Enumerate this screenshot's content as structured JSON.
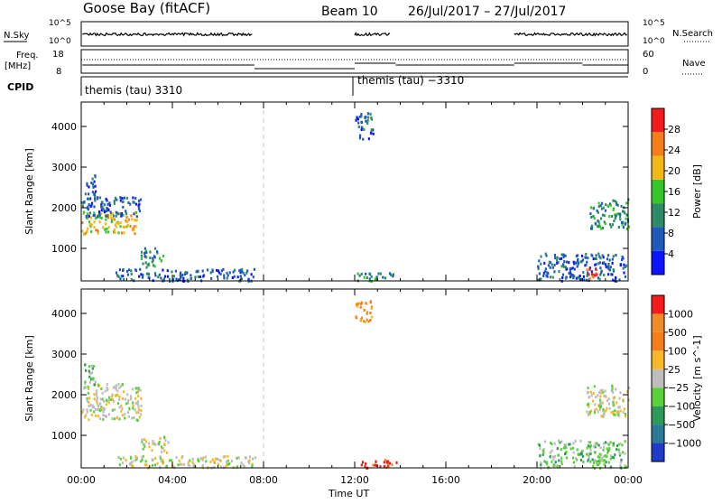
{
  "header": {
    "station": "Goose Bay (fitACF)",
    "beam": "Beam 10",
    "date_range": "26/Jul/2017 – 27/Jul/2017"
  },
  "info_panels": {
    "nsky_label": "N.Sky",
    "nsearch_label": "N.Search",
    "freq_label": "Freq.",
    "freq_unit": "[MHz]",
    "nave_label": "Nave",
    "cpid_label": "CPID",
    "nsky_ticks": [
      "10^5",
      "10^0"
    ],
    "nsearch_ticks": [
      "10^5",
      "10^0"
    ],
    "freq_ticks": [
      "18",
      "8"
    ],
    "nave_ticks": [
      "60",
      "0"
    ],
    "cpid_text_1": "themis (tau) 3310",
    "cpid_text_2": "themis (tau) −3310"
  },
  "colors": {
    "scatter_gray": "#bdbdbd",
    "divider_dashed": "#c8c8c8"
  },
  "chart_data": [
    {
      "type": "heatmap",
      "panel": "power",
      "ylabel": "Slant Range [km]",
      "yticks": [
        1000,
        2000,
        3000,
        4000
      ],
      "ylim": [
        200,
        4600
      ],
      "xlim": [
        0,
        24
      ],
      "colorbar": {
        "label": "Power [dB]",
        "levels": [
          "4",
          "8",
          "12",
          "16",
          "20",
          "24",
          "28"
        ],
        "colors": [
          "#0a14ff",
          "#1e5abc",
          "#2d8a64",
          "#34c62a",
          "#f2b818",
          "#f57d1a",
          "#f31c1c"
        ],
        "min": 0,
        "max": 32
      },
      "clusters": [
        {
          "t0": 0.0,
          "t1": 2.5,
          "r0": 1380,
          "r1": 1950,
          "level": 4
        },
        {
          "t0": 0.0,
          "t1": 2.6,
          "r0": 1800,
          "r1": 2300,
          "level": 1
        },
        {
          "t0": 0.1,
          "t1": 0.6,
          "r0": 2200,
          "r1": 2850,
          "level": 1
        },
        {
          "t0": 2.6,
          "t1": 3.6,
          "r0": 560,
          "r1": 1050,
          "level": 2
        },
        {
          "t0": 1.5,
          "t1": 7.6,
          "r0": 220,
          "r1": 520,
          "level": 1
        },
        {
          "t0": 12.0,
          "t1": 12.8,
          "r0": 3700,
          "r1": 4350,
          "level": 1
        },
        {
          "t0": 12.0,
          "t1": 13.8,
          "r0": 220,
          "r1": 420,
          "level": 2
        },
        {
          "t0": 20.0,
          "t1": 23.9,
          "r0": 220,
          "r1": 900,
          "level": 1
        },
        {
          "t0": 22.0,
          "t1": 22.7,
          "r0": 280,
          "r1": 520,
          "level": 6
        },
        {
          "t0": 22.3,
          "t1": 24.0,
          "r0": 1500,
          "r1": 2250,
          "level": 2
        }
      ]
    },
    {
      "type": "heatmap",
      "panel": "velocity",
      "ylabel": "Slant Range [km]",
      "xlabel": "Time UT",
      "yticks": [
        1000,
        2000,
        3000,
        4000
      ],
      "ylim": [
        200,
        4600
      ],
      "xlim": [
        0,
        24
      ],
      "xticks": [
        "00:00",
        "04:00",
        "08:00",
        "12:00",
        "16:00",
        "20:00",
        "00:00"
      ],
      "colorbar": {
        "label": "Velocity [m s^-1]",
        "levels": [
          "1000",
          "500",
          "100",
          "25",
          "−25",
          "−100",
          "−500",
          "−1000"
        ],
        "colors": [
          "#1e3cc8",
          "#2a7a96",
          "#2e9a58",
          "#59d23a",
          "#bdbdbd",
          "#f6b82a",
          "#f57d1a",
          "#f08c28",
          "#f31c1c"
        ]
      },
      "clusters": [
        {
          "t0": 0.0,
          "t1": 2.6,
          "r0": 1400,
          "r1": 2300,
          "level": 4
        },
        {
          "t0": 0.1,
          "t1": 0.6,
          "r0": 2200,
          "r1": 2850,
          "level": 3
        },
        {
          "t0": 2.6,
          "t1": 3.8,
          "r0": 600,
          "r1": 1000,
          "level": 4
        },
        {
          "t0": 1.5,
          "t1": 7.6,
          "r0": 220,
          "r1": 520,
          "level": 4
        },
        {
          "t0": 12.0,
          "t1": 12.8,
          "r0": 3800,
          "r1": 4350,
          "level": 6
        },
        {
          "t0": 12.0,
          "t1": 13.8,
          "r0": 220,
          "r1": 420,
          "level": 8
        },
        {
          "t0": 20.0,
          "t1": 23.9,
          "r0": 220,
          "r1": 900,
          "level": 3
        },
        {
          "t0": 22.0,
          "t1": 24.0,
          "r0": 1500,
          "r1": 2250,
          "level": 4
        }
      ]
    }
  ]
}
